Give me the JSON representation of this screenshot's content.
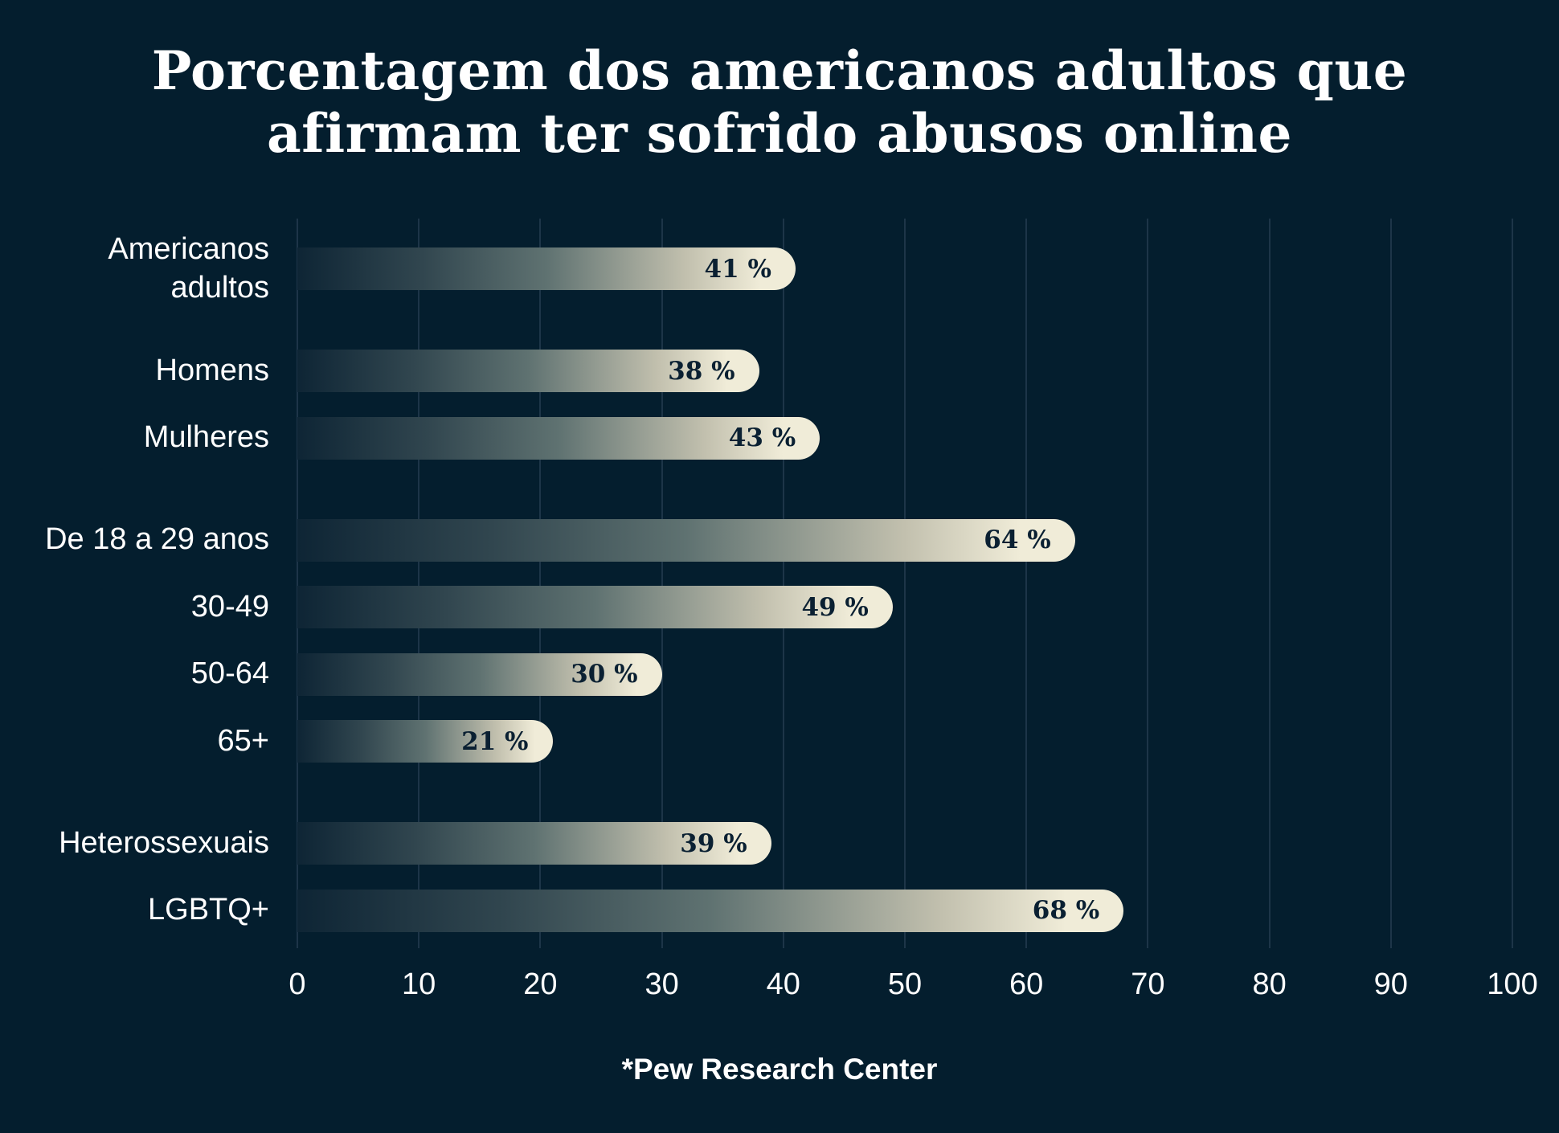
{
  "page": {
    "title_line1": "Porcentagem dos americanos adultos que",
    "title_line2": "afirmam ter sofrido abusos online",
    "source_note": "*Pew Research Center"
  },
  "colors": {
    "background": "#041e2e",
    "gridline": "#1d3548",
    "bar_start": "#0e2535",
    "bar_end": "#f0ecd8",
    "value_text": "#0a2032",
    "label_text": "#ffffff"
  },
  "chart_data": {
    "type": "bar",
    "orientation": "horizontal",
    "title": "Porcentagem dos americanos adultos que afirmam ter sofrido abusos online",
    "source": "*Pew Research Center",
    "xlabel": "",
    "ylabel": "",
    "xlim": [
      0,
      100
    ],
    "x_ticks": [
      0,
      10,
      20,
      30,
      40,
      50,
      60,
      70,
      80,
      90,
      100
    ],
    "grid": true,
    "legend": "none",
    "categories": [
      "Americanos adultos",
      "Homens",
      "Mulheres",
      "De 18 a 29 anos",
      "30-49",
      "50-64",
      "65+",
      "Heterossexuais",
      "LGBTQ+"
    ],
    "values": [
      41,
      38,
      43,
      64,
      49,
      30,
      21,
      39,
      68
    ],
    "bars": [
      {
        "label": "Americanos adultos",
        "value": 41,
        "display": "41 %",
        "new_group": false
      },
      {
        "label": "Homens",
        "value": 38,
        "display": "38 %",
        "new_group": true
      },
      {
        "label": "Mulheres",
        "value": 43,
        "display": "43 %",
        "new_group": false
      },
      {
        "label": "De 18 a 29 anos",
        "value": 64,
        "display": "64 %",
        "new_group": true
      },
      {
        "label": "30-49",
        "value": 49,
        "display": "49 %",
        "new_group": false
      },
      {
        "label": "50-64",
        "value": 30,
        "display": "30 %",
        "new_group": false
      },
      {
        "label": "65+",
        "value": 21,
        "display": "21 %",
        "new_group": false
      },
      {
        "label": "Heterossexuais",
        "value": 39,
        "display": "39 %",
        "new_group": true
      },
      {
        "label": "LGBTQ+",
        "value": 68,
        "display": "68 %",
        "new_group": false
      }
    ]
  }
}
